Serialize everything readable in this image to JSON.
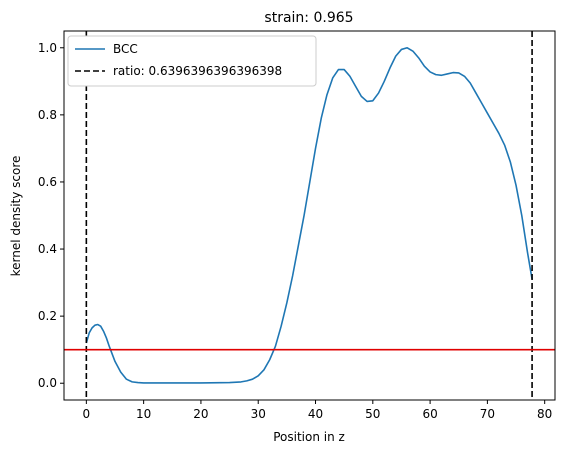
{
  "chart_data": {
    "type": "line",
    "title": "strain: 0.965",
    "xlabel": "Position in z",
    "ylabel": "kernel density score",
    "xlim": [
      -3.9,
      81.8
    ],
    "ylim": [
      -0.05,
      1.05
    ],
    "xticks": [
      0,
      10,
      20,
      30,
      40,
      50,
      60,
      70,
      80
    ],
    "yticks": [
      0.0,
      0.2,
      0.4,
      0.6,
      0.8,
      1.0
    ],
    "xtick_labels": [
      "0",
      "10",
      "20",
      "30",
      "40",
      "50",
      "60",
      "70",
      "80"
    ],
    "ytick_labels": [
      "0.0",
      "0.2",
      "0.4",
      "0.6",
      "0.8",
      "1.0"
    ],
    "grid": false,
    "legend_position": "upper-left",
    "series": [
      {
        "name": "BCC",
        "color": "#1f77b4",
        "style": "solid",
        "x": [
          0,
          0.5,
          1,
          1.5,
          2,
          2.5,
          3,
          3.5,
          4,
          5,
          6,
          7,
          8,
          9,
          10,
          12,
          15,
          20,
          25,
          27,
          28,
          29,
          30,
          31,
          32,
          33,
          34,
          35,
          36,
          37,
          38,
          39,
          40,
          41,
          42,
          43,
          44,
          45,
          46,
          47,
          48,
          49,
          50,
          51,
          52,
          53,
          54,
          55,
          56,
          57,
          58,
          59,
          60,
          61,
          62,
          63,
          64,
          65,
          66,
          67,
          68,
          69,
          70,
          71,
          72,
          73,
          74,
          75,
          76,
          77,
          77.8
        ],
        "y": [
          0.12,
          0.15,
          0.165,
          0.173,
          0.175,
          0.17,
          0.155,
          0.135,
          0.11,
          0.065,
          0.033,
          0.012,
          0.004,
          0.002,
          0.001,
          0.001,
          0.001,
          0.001,
          0.002,
          0.004,
          0.007,
          0.012,
          0.022,
          0.04,
          0.07,
          0.11,
          0.17,
          0.24,
          0.32,
          0.41,
          0.5,
          0.6,
          0.7,
          0.79,
          0.86,
          0.91,
          0.935,
          0.935,
          0.915,
          0.885,
          0.855,
          0.84,
          0.842,
          0.865,
          0.9,
          0.94,
          0.975,
          0.995,
          1.0,
          0.99,
          0.97,
          0.945,
          0.928,
          0.92,
          0.918,
          0.922,
          0.926,
          0.925,
          0.915,
          0.895,
          0.865,
          0.835,
          0.805,
          0.775,
          0.745,
          0.71,
          0.66,
          0.59,
          0.5,
          0.39,
          0.31
        ]
      },
      {
        "name": "ratio: 0.6396396396396398",
        "color": "#000000",
        "style": "dashed",
        "vlines": [
          0,
          77.8
        ]
      },
      {
        "name": "",
        "color": "#e00000",
        "style": "solid",
        "hline": 0.1
      }
    ]
  }
}
